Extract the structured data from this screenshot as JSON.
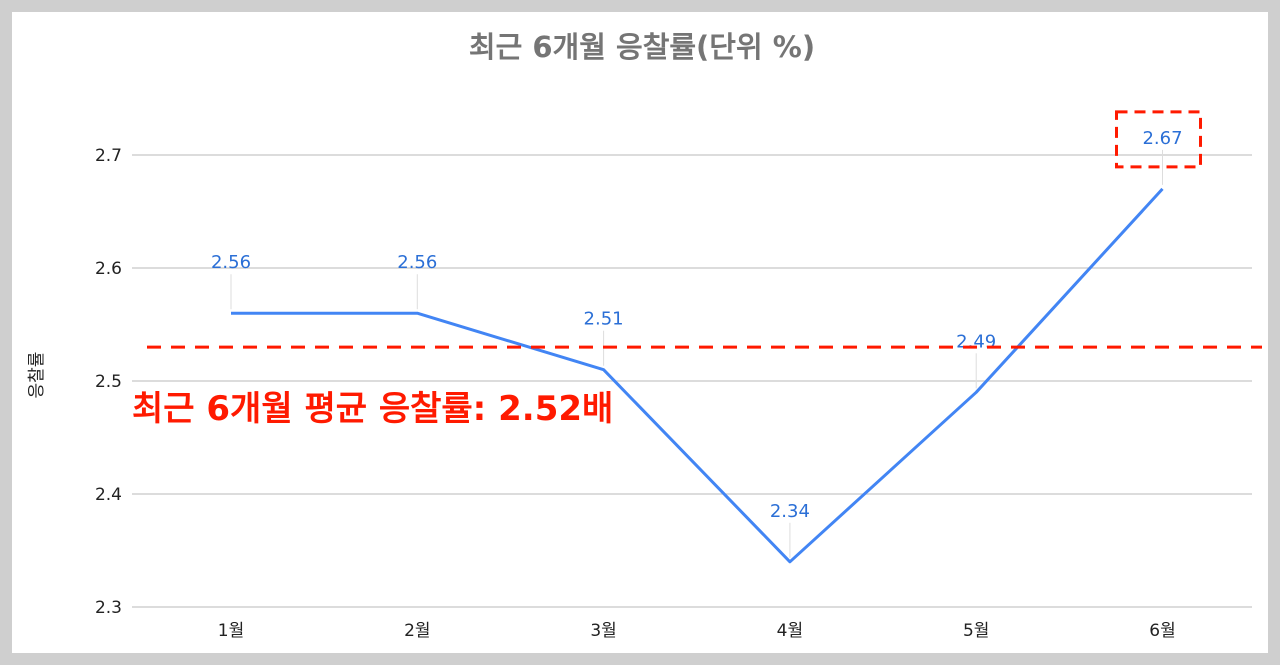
{
  "chart_data": {
    "type": "line",
    "title": "최근 6개월 응찰률(단위 %)",
    "ylabel": "응찰률",
    "xlabel": "",
    "categories": [
      "1월",
      "2월",
      "3월",
      "4월",
      "5월",
      "6월"
    ],
    "series": [
      {
        "values": [
          2.56,
          2.56,
          2.51,
          2.34,
          2.49,
          2.67
        ]
      }
    ],
    "data_labels": [
      "2.56",
      "2.56",
      "2.51",
      "2.34",
      "2.49",
      "2.67"
    ],
    "y_ticks": [
      "2.3",
      "2.4",
      "2.5",
      "2.6",
      "2.7"
    ],
    "ylim": [
      2.3,
      2.7
    ],
    "grid": true,
    "reference_line": {
      "value": 2.53,
      "style": "dashed"
    },
    "annotation": "최근 6개월 평균 응찰률: 2.52배",
    "highlight_category": "6월",
    "colors": {
      "line": "#4285f4",
      "label": "#2b6fd6",
      "annotation": "#ff1a00",
      "grid": "#c8c8c8"
    }
  }
}
